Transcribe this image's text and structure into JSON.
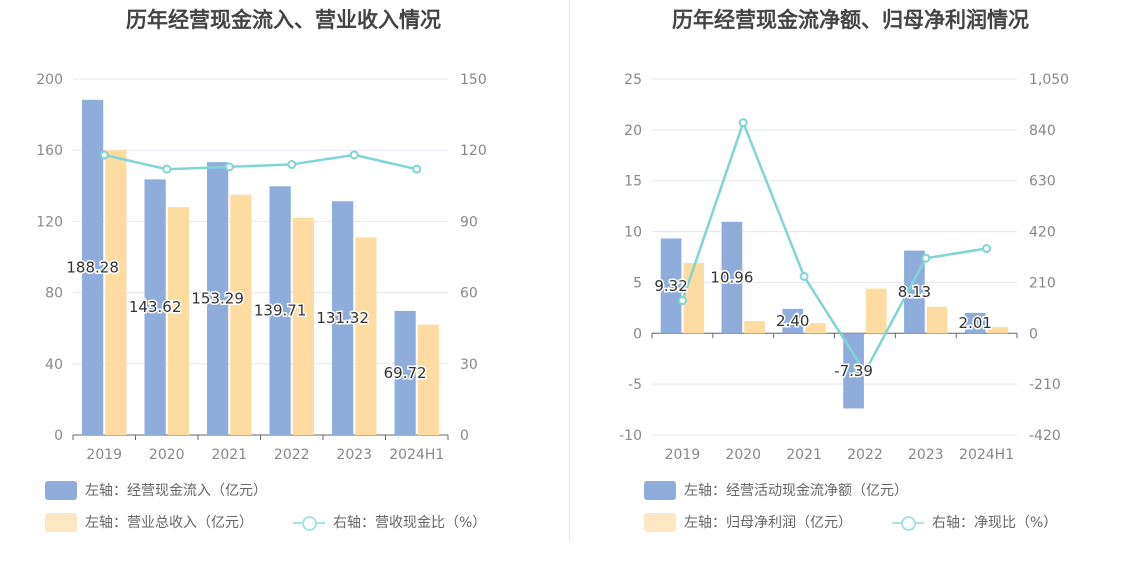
{
  "chart_data": [
    {
      "type": "bar",
      "title": "历年经营现金流入、营业收入情况",
      "categories": [
        "2019",
        "2020",
        "2021",
        "2022",
        "2023",
        "2024H1"
      ],
      "left_axis": {
        "ticks": [
          "0",
          "40",
          "80",
          "120",
          "160",
          "200"
        ],
        "range": [
          0,
          200
        ]
      },
      "right_axis": {
        "ticks": [
          "0",
          "30",
          "60",
          "90",
          "120",
          "150"
        ],
        "range": [
          0,
          150
        ]
      },
      "series": [
        {
          "name": "左轴：经营现金流入（亿元）",
          "axis": "left",
          "kind": "bar",
          "color": "#8eaddb",
          "values": [
            188.28,
            143.62,
            153.29,
            139.71,
            131.32,
            69.72
          ],
          "labels": [
            "188.28",
            "143.62",
            "153.29",
            "139.71",
            "131.32",
            "69.72"
          ]
        },
        {
          "name": "左轴：营业总收入（亿元）",
          "axis": "left",
          "kind": "bar",
          "color": "#fddba1",
          "values": [
            160,
            128,
            135,
            122,
            111,
            62
          ]
        },
        {
          "name": "右轴：营收现金比（%）",
          "axis": "right",
          "kind": "line",
          "color": "#7fd4d6",
          "values": [
            118,
            112,
            113,
            114,
            118,
            112
          ]
        }
      ],
      "grid": true,
      "legend_position": "bottom-left"
    },
    {
      "type": "bar",
      "title": "历年经营现金流净额、归母净利润情况",
      "categories": [
        "2019",
        "2020",
        "2021",
        "2022",
        "2023",
        "2024H1"
      ],
      "left_axis": {
        "ticks": [
          "-10",
          "-5",
          "0",
          "5",
          "10",
          "15",
          "20",
          "25"
        ],
        "range": [
          -10,
          25
        ]
      },
      "right_axis": {
        "ticks": [
          "-420",
          "-210",
          "0",
          "210",
          "420",
          "630",
          "840",
          "1,050"
        ],
        "range": [
          -420,
          1050
        ]
      },
      "series": [
        {
          "name": "左轴：经营活动现金流净额（亿元）",
          "axis": "left",
          "kind": "bar",
          "color": "#8eaddb",
          "values": [
            9.32,
            10.96,
            2.4,
            -7.39,
            8.13,
            2.01
          ],
          "labels": [
            "9.32",
            "10.96",
            "2.40",
            "-7.39",
            "8.13",
            "2.01"
          ]
        },
        {
          "name": "左轴：归母净利润（亿元）",
          "axis": "left",
          "kind": "bar",
          "color": "#fddba1",
          "values": [
            6.9,
            1.2,
            1.0,
            4.4,
            2.6,
            0.6
          ]
        },
        {
          "name": "右轴：净现比（%）",
          "axis": "right",
          "kind": "line",
          "color": "#7fd4d6",
          "values": [
            135,
            870,
            235,
            -160,
            310,
            350
          ]
        }
      ],
      "grid": true,
      "legend_position": "bottom-left"
    }
  ]
}
